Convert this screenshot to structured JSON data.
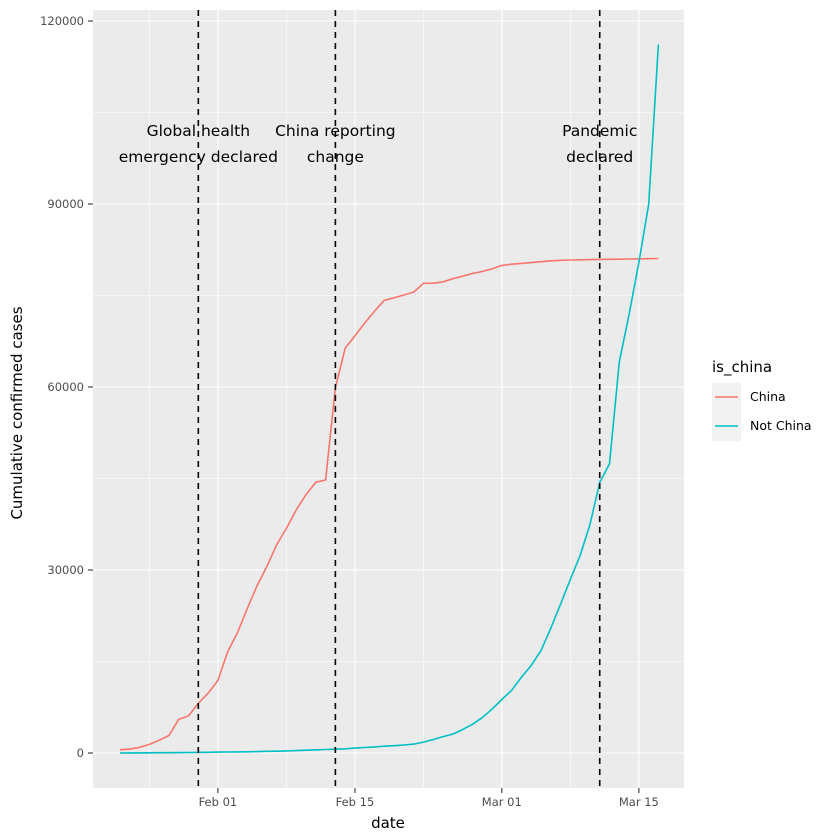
{
  "chart_data": {
    "type": "line",
    "title": "",
    "xlabel": "date",
    "ylabel": "Cumulative confirmed cases",
    "x_ticks": [
      "Feb 01",
      "Feb 15",
      "Mar 01",
      "Mar 15"
    ],
    "y_ticks": [
      "0",
      "30000",
      "60000",
      "90000",
      "120000"
    ],
    "ylim": [
      0,
      120000
    ],
    "x_range": [
      "2020-01-22",
      "2020-03-17"
    ],
    "grid": true,
    "legend": {
      "title": "is_china",
      "position": "right",
      "entries": [
        "China",
        "Not China"
      ]
    },
    "colors": {
      "China": "#F8766D",
      "Not China": "#00BFC4",
      "panel": "#EBEBEB",
      "grid": "#FFFFFF",
      "vline": "#000000"
    },
    "x": [
      "01-22",
      "01-23",
      "01-24",
      "01-25",
      "01-26",
      "01-27",
      "01-28",
      "01-29",
      "01-30",
      "01-31",
      "02-01",
      "02-02",
      "02-03",
      "02-04",
      "02-05",
      "02-06",
      "02-07",
      "02-08",
      "02-09",
      "02-10",
      "02-11",
      "02-12",
      "02-13",
      "02-14",
      "02-15",
      "02-16",
      "02-17",
      "02-18",
      "02-19",
      "02-20",
      "02-21",
      "02-22",
      "02-23",
      "02-24",
      "02-25",
      "02-26",
      "02-27",
      "02-28",
      "02-29",
      "03-01",
      "03-02",
      "03-03",
      "03-04",
      "03-05",
      "03-06",
      "03-07",
      "03-08",
      "03-09",
      "03-10",
      "03-11",
      "03-12",
      "03-13",
      "03-14",
      "03-15",
      "03-16",
      "03-17"
    ],
    "series": [
      {
        "name": "China",
        "values": [
          548,
          643,
          920,
          1406,
          2075,
          2877,
          5509,
          6087,
          8141,
          9802,
          11891,
          16630,
          19716,
          23707,
          27440,
          30587,
          34110,
          36814,
          39829,
          42354,
          44386,
          44759,
          59895,
          66358,
          68413,
          70513,
          72434,
          74211,
          74619,
          75077,
          75550,
          77001,
          77022,
          77241,
          77754,
          78166,
          78600,
          78928,
          79356,
          79932,
          80136,
          80261,
          80386,
          80537,
          80690,
          80770,
          80823,
          80860,
          80887,
          80921,
          80932,
          80945,
          80977,
          81003,
          81033,
          81058
        ]
      },
      {
        "name": "Not China",
        "values": [
          7,
          11,
          21,
          28,
          43,
          50,
          71,
          81,
          95,
          121,
          146,
          160,
          185,
          199,
          231,
          271,
          288,
          345,
          396,
          454,
          504,
          571,
          619,
          694,
          802,
          903,
          1005,
          1112,
          1196,
          1316,
          1465,
          1795,
          2213,
          2682,
          3100,
          3830,
          4699,
          5790,
          7176,
          8766,
          10264,
          12411,
          14350,
          16783,
          20463,
          24382,
          28433,
          32373,
          37421,
          44339,
          47401,
          64120,
          71920,
          80440,
          89970,
          116160
        ]
      }
    ],
    "vlines": [
      {
        "date": "2020-01-30",
        "label_lines": [
          "Global health",
          "emergency declared"
        ]
      },
      {
        "date": "2020-02-13",
        "label_lines": [
          "China reporting",
          "change"
        ]
      },
      {
        "date": "2020-03-11",
        "label_lines": [
          "Pandemic",
          "declared"
        ]
      }
    ]
  }
}
